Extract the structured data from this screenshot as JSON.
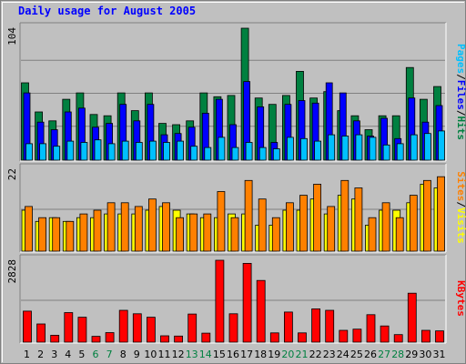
{
  "chart_data": {
    "type": "bar",
    "title": "Daily usage for August 2005",
    "categories": [
      "1",
      "2",
      "3",
      "4",
      "5",
      "6",
      "7",
      "8",
      "9",
      "10",
      "11",
      "12",
      "13",
      "14",
      "15",
      "16",
      "17",
      "18",
      "19",
      "20",
      "21",
      "22",
      "23",
      "24",
      "25",
      "26",
      "27",
      "28",
      "29",
      "30",
      "31"
    ],
    "weekend_days": [
      "6",
      "7",
      "13",
      "14",
      "20",
      "21",
      "27",
      "28"
    ],
    "panels": [
      {
        "id": "hits",
        "ymax_label": "104",
        "ymax": 104,
        "grid": true,
        "series": [
          {
            "name": "Hits",
            "color": "#008040",
            "values": [
              61,
              38,
              31,
              48,
              53,
              36,
              35,
              53,
              39,
              53,
              29,
              28,
              31,
              53,
              50,
              51,
              104,
              49,
              44,
              51,
              70,
              49,
              54,
              39,
              35,
              24,
              35,
              35,
              73,
              48,
              58
            ]
          },
          {
            "name": "Files",
            "color": "#0000ff",
            "values": [
              53,
              30,
              24,
              38,
              41,
              26,
              29,
              44,
              31,
              44,
              20,
              21,
              26,
              37,
              48,
              28,
              62,
              42,
              14,
              44,
              47,
              45,
              61,
              53,
              31,
              19,
              33,
              17,
              49,
              30,
              43
            ]
          },
          {
            "name": "Pages",
            "color": "#00c0ff",
            "values": [
              13,
              13,
              11,
              15,
              14,
              16,
              13,
              15,
              14,
              15,
              14,
              15,
              11,
              10,
              18,
              10,
              14,
              10,
              9,
              18,
              17,
              15,
              20,
              19,
              20,
              18,
              12,
              13,
              20,
              21,
              23
            ]
          }
        ],
        "legend": [
          "Pages",
          "/",
          "Files",
          "/",
          "Hits"
        ]
      },
      {
        "id": "visits",
        "ymax_label": "22",
        "ymax": 22,
        "grid": true,
        "series": [
          {
            "name": "Visits",
            "color": "#ffff00",
            "values": [
              11,
              8,
              9,
              8,
              9,
              9,
              10,
              10,
              10,
              11,
              12,
              11,
              10,
              9,
              9,
              10,
              10,
              7,
              7,
              11,
              11,
              14,
              10,
              15,
              14,
              7,
              11,
              11,
              13,
              18,
              17
            ]
          },
          {
            "name": "Sites",
            "color": "#ff8000",
            "values": [
              12,
              9,
              9,
              8,
              10,
              11,
              13,
              13,
              12,
              14,
              13,
              9,
              10,
              10,
              16,
              9,
              19,
              14,
              9,
              13,
              15,
              18,
              12,
              19,
              17,
              9,
              13,
              9,
              15,
              19,
              20
            ]
          }
        ],
        "legend": [
          "Sites",
          "/",
          "Visits"
        ]
      },
      {
        "id": "kbytes",
        "ymax_label": "2828",
        "ymax": 2828,
        "grid": true,
        "series": [
          {
            "name": "KBytes",
            "color": "#ff0000",
            "values": [
              1072,
              630,
              240,
              1020,
              860,
              200,
              330,
              1100,
              980,
              860,
              220,
              210,
              970,
              310,
              2828,
              980,
              2720,
              2130,
              320,
              1040,
              320,
              1150,
              1100,
              410,
              450,
              950,
              560,
              260,
              1690,
              410,
              390
            ]
          }
        ],
        "legend": [
          "KBytes"
        ]
      }
    ]
  }
}
